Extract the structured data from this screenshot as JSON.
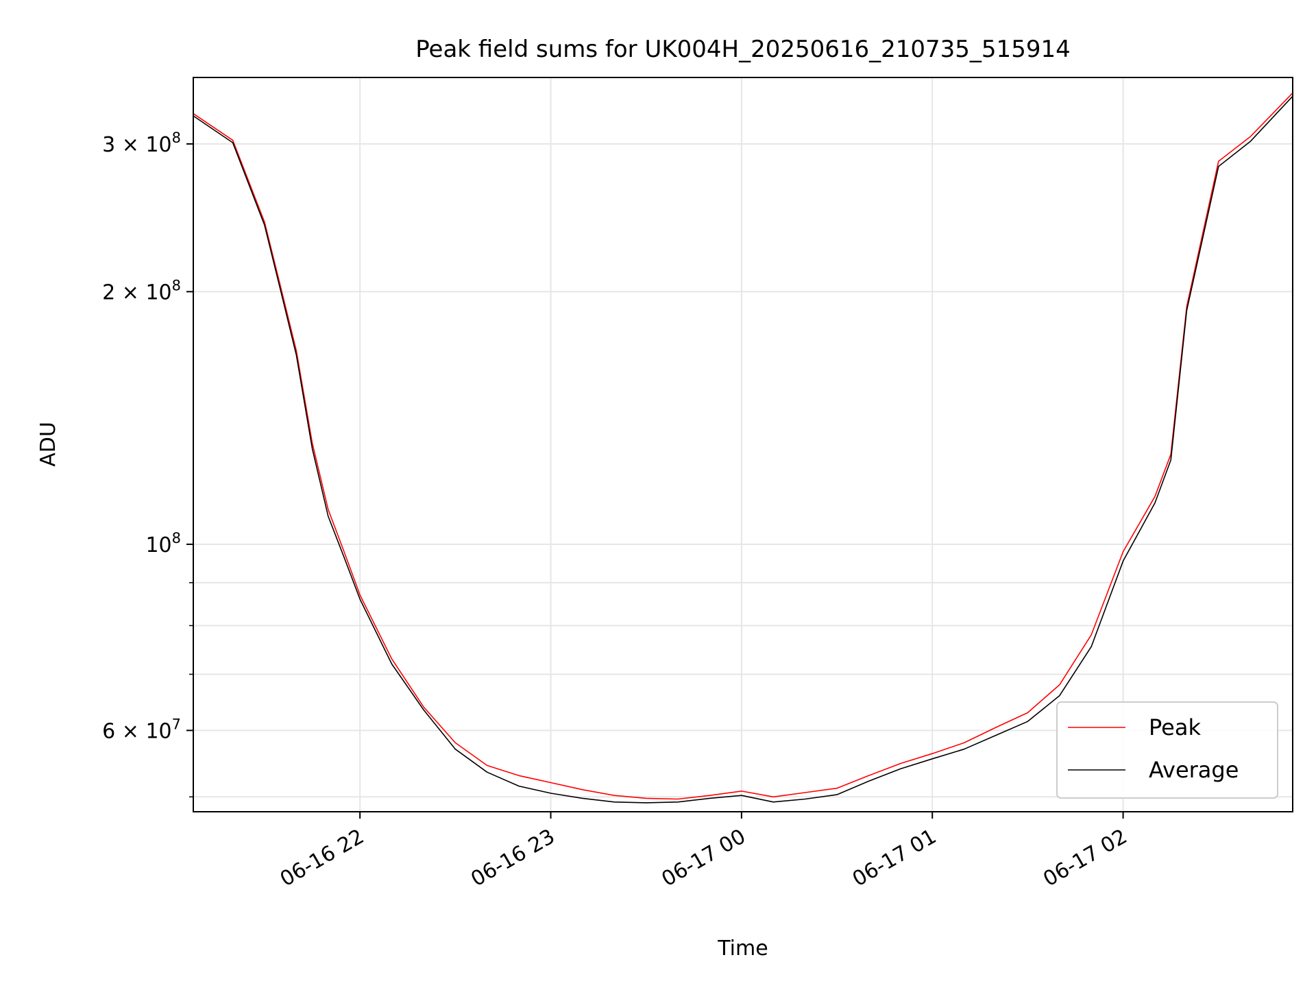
{
  "chart_data": {
    "type": "line",
    "title": "Peak field sums for UK004H_20250616_210735_515914",
    "xlabel": "Time",
    "ylabel": "ADU",
    "y_scale": "log",
    "ylim": [
      48000000,
      360000000
    ],
    "xlim": [
      "2025-06-16 21:07:35",
      "2025-06-17 02:53:20"
    ],
    "grid": true,
    "legend_position": "lower-right",
    "x_ticks": [
      {
        "x": "2025-06-16 22:00",
        "label": "06-16 22"
      },
      {
        "x": "2025-06-16 23:00",
        "label": "06-16 23"
      },
      {
        "x": "2025-06-17 00:00",
        "label": "06-17 00"
      },
      {
        "x": "2025-06-17 01:00",
        "label": "06-17 01"
      },
      {
        "x": "2025-06-17 02:00",
        "label": "06-17 02"
      }
    ],
    "y_ticks": [
      {
        "value": 300000000,
        "mantissa": "3",
        "exp": "8"
      },
      {
        "value": 200000000,
        "mantissa": "2",
        "exp": "8"
      },
      {
        "value": 100000000,
        "mantissa": "",
        "exp": "8"
      },
      {
        "value": 60000000,
        "mantissa": "6",
        "exp": "7"
      }
    ],
    "y_minor_ticks": [
      90000000,
      80000000,
      70000000,
      50000000
    ],
    "series": [
      {
        "name": "Peak",
        "color": "#ff0000",
        "x": [
          "2025-06-16 21:07:35",
          "2025-06-16 21:20",
          "2025-06-16 21:30",
          "2025-06-16 21:35",
          "2025-06-16 21:40",
          "2025-06-16 21:45",
          "2025-06-16 21:50",
          "2025-06-16 21:55",
          "2025-06-16 22:00",
          "2025-06-16 22:10",
          "2025-06-16 22:20",
          "2025-06-16 22:30",
          "2025-06-16 22:40",
          "2025-06-16 22:50",
          "2025-06-16 23:00",
          "2025-06-16 23:10",
          "2025-06-16 23:20",
          "2025-06-16 23:30",
          "2025-06-16 23:40",
          "2025-06-16 23:50",
          "2025-06-17 00:00",
          "2025-06-17 00:10",
          "2025-06-17 00:20",
          "2025-06-17 00:30",
          "2025-06-17 00:40",
          "2025-06-17 00:50",
          "2025-06-17 01:00",
          "2025-06-17 01:10",
          "2025-06-17 01:20",
          "2025-06-17 01:30",
          "2025-06-17 01:40",
          "2025-06-17 01:50",
          "2025-06-17 02:00",
          "2025-06-17 02:10",
          "2025-06-17 02:15",
          "2025-06-17 02:20",
          "2025-06-17 02:30",
          "2025-06-17 02:40",
          "2025-06-17 02:53:20"
        ],
        "values": [
          326000000,
          303000000,
          242000000,
          203000000,
          170000000,
          132000000,
          110000000,
          98000000,
          87000000,
          73000000,
          64000000,
          58000000,
          54500000,
          53000000,
          52000000,
          51000000,
          50200000,
          49800000,
          49700000,
          50200000,
          50800000,
          50000000,
          50600000,
          51200000,
          53000000,
          54800000,
          56300000,
          58000000,
          60500000,
          63000000,
          68000000,
          78000000,
          98000000,
          114000000,
          128000000,
          192000000,
          286000000,
          306000000,
          345000000
        ]
      },
      {
        "name": "Average",
        "color": "#000000",
        "x": [
          "2025-06-16 21:07:35",
          "2025-06-16 21:20",
          "2025-06-16 21:30",
          "2025-06-16 21:35",
          "2025-06-16 21:40",
          "2025-06-16 21:45",
          "2025-06-16 21:50",
          "2025-06-16 21:55",
          "2025-06-16 22:00",
          "2025-06-16 22:10",
          "2025-06-16 22:20",
          "2025-06-16 22:30",
          "2025-06-16 22:40",
          "2025-06-16 22:50",
          "2025-06-16 23:00",
          "2025-06-16 23:10",
          "2025-06-16 23:20",
          "2025-06-16 23:30",
          "2025-06-16 23:40",
          "2025-06-16 23:50",
          "2025-06-17 00:00",
          "2025-06-17 00:10",
          "2025-06-17 00:20",
          "2025-06-17 00:30",
          "2025-06-17 00:40",
          "2025-06-17 00:50",
          "2025-06-17 01:00",
          "2025-06-17 01:10",
          "2025-06-17 01:20",
          "2025-06-17 01:30",
          "2025-06-17 01:40",
          "2025-06-17 01:50",
          "2025-06-17 02:00",
          "2025-06-17 02:10",
          "2025-06-17 02:15",
          "2025-06-17 02:20",
          "2025-06-17 02:30",
          "2025-06-17 02:40",
          "2025-06-17 02:53:20"
        ],
        "values": [
          324000000,
          301000000,
          240000000,
          201000000,
          168000000,
          130000000,
          108000000,
          96500000,
          86000000,
          72000000,
          63500000,
          57000000,
          53500000,
          51500000,
          50500000,
          49800000,
          49300000,
          49200000,
          49300000,
          49800000,
          50200000,
          49300000,
          49700000,
          50300000,
          52200000,
          54000000,
          55500000,
          57000000,
          59200000,
          61500000,
          66000000,
          75500000,
          95500000,
          112000000,
          126000000,
          190000000,
          282000000,
          302000000,
          342000000
        ]
      }
    ]
  }
}
